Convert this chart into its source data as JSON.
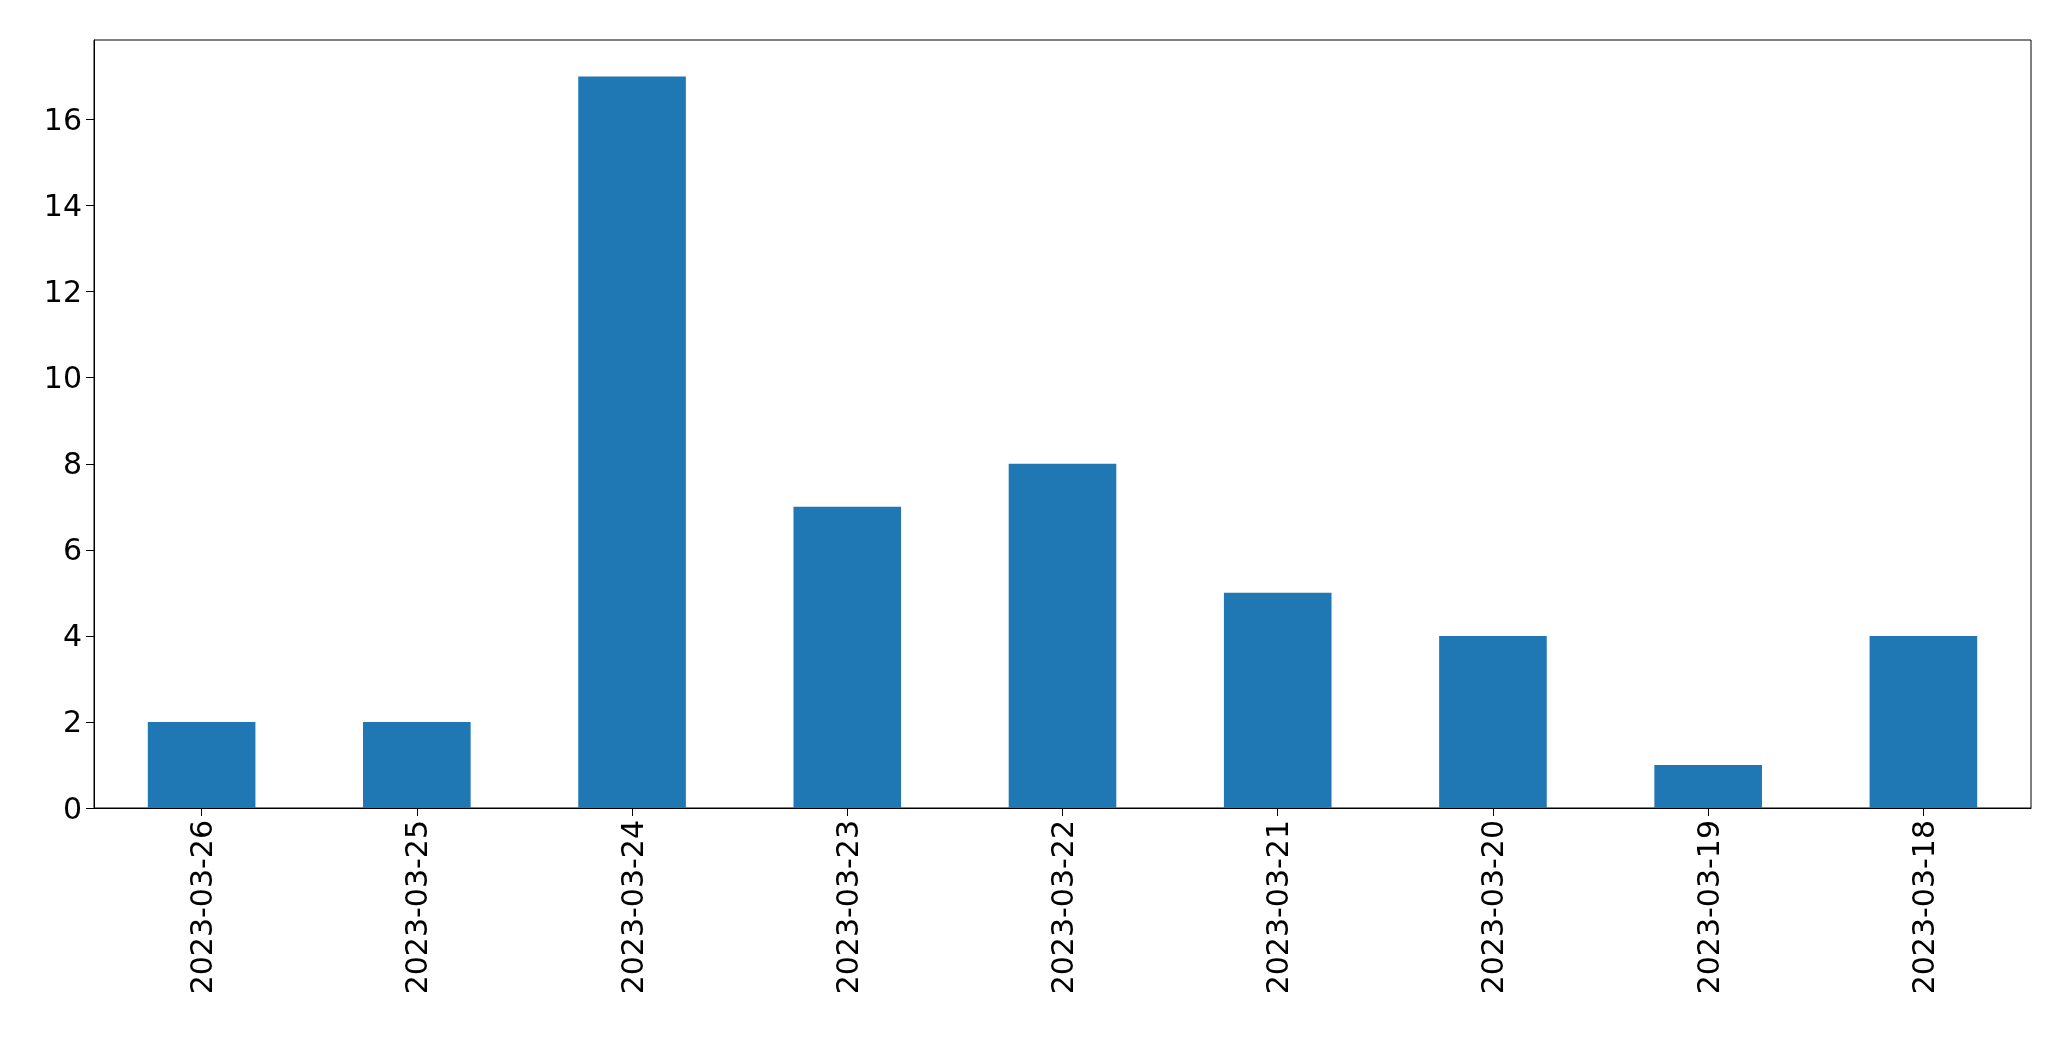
{
  "chart_data": {
    "type": "bar",
    "categories": [
      "2023-03-26",
      "2023-03-25",
      "2023-03-24",
      "2023-03-23",
      "2023-03-22",
      "2023-03-21",
      "2023-03-20",
      "2023-03-19",
      "2023-03-18"
    ],
    "values": [
      2,
      2,
      17,
      7,
      8,
      5,
      4,
      1,
      4
    ],
    "color": "#1f77b4",
    "ylim": [
      0,
      17.85
    ],
    "yticks": [
      0,
      2,
      4,
      6,
      8,
      10,
      12,
      14,
      16
    ],
    "grid": false
  }
}
